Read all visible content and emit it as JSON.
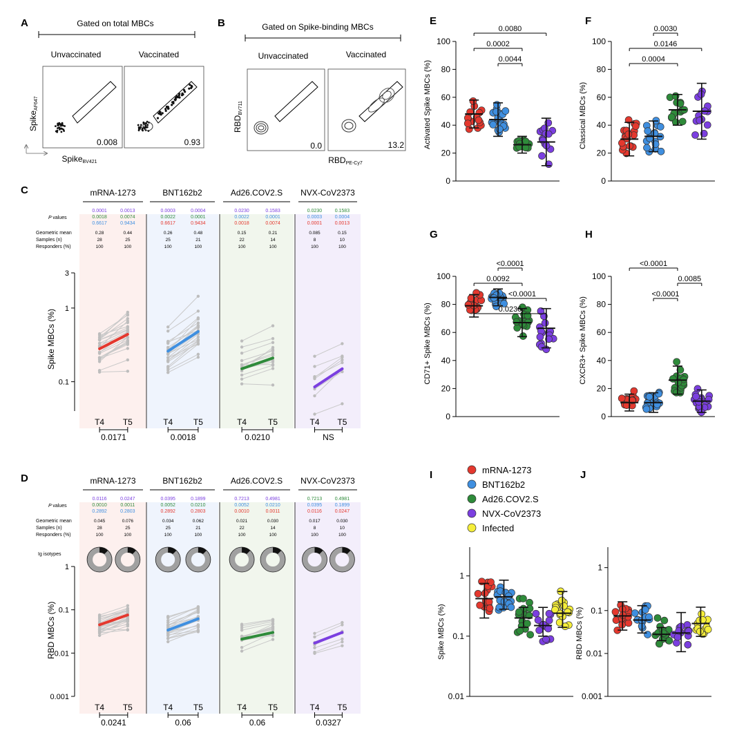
{
  "colors": {
    "mRNA": "#e4382e",
    "BNT": "#3f8fe0",
    "Ad26": "#2e8b3a",
    "NVX": "#7b3fe0",
    "Infected": "#f5ee3a",
    "grayPoint": "#bdbdbd",
    "grayLine": "#c9c9c9"
  },
  "panelA": {
    "letter": "A",
    "header": "Gated on total MBCs",
    "left_title": "Unvaccinated",
    "right_title": "Vaccinated",
    "left_value": "0.008",
    "right_value": "0.93",
    "ylabel_main": "Spike",
    "ylabel_sub": "AF647",
    "xlabel_main": "Spike",
    "xlabel_sub": "BV421"
  },
  "panelB": {
    "letter": "B",
    "header": "Gated on Spike-binding MBCs",
    "left_title": "Unvaccinated",
    "right_title": "Vaccinated",
    "left_value": "0.0",
    "right_value": "13.2",
    "ylabel_main": "RBD",
    "ylabel_sub": "BV711",
    "xlabel_main": "RBD",
    "xlabel_sub": "PE-Cy7"
  },
  "groups": [
    "mRNA-1273",
    "BNT162b2",
    "Ad26.COV2.S",
    "NVX-CoV2373"
  ],
  "legend": [
    "mRNA-1273",
    "BNT162b2",
    "Ad26.COV2.S",
    "NVX-CoV2373",
    "Infected"
  ],
  "panelC": {
    "letter": "C",
    "ylabel": "Spike MBCs (%)",
    "yticks": [
      "3",
      "1",
      "0.1"
    ],
    "row_labels": {
      "pvalues": "values",
      "pvalues_italic": "P",
      "gm": "Geometric mean",
      "n": "Samples (n)",
      "resp": "Responders (%)"
    },
    "xticks": [
      "T4",
      "T5"
    ],
    "groups": [
      {
        "pvals": [
          [
            "0.0001",
            "0.0013"
          ],
          [
            "0.0018",
            "0.0074"
          ],
          [
            "0.6617",
            "0.9434"
          ]
        ],
        "pcolors": [
          "NVX",
          "Ad26",
          "BNT"
        ],
        "gm": [
          "0.28",
          "0.44"
        ],
        "n": [
          "28",
          "25"
        ],
        "resp": [
          "100",
          "100"
        ],
        "bottom": "0.0171",
        "mean": [
          0.28,
          0.44
        ]
      },
      {
        "pvals": [
          [
            "0.0003",
            "0.0004"
          ],
          [
            "0.0022",
            "0.0001"
          ],
          [
            "0.6617",
            "0.9434"
          ]
        ],
        "pcolors": [
          "NVX",
          "Ad26",
          "mRNA"
        ],
        "gm": [
          "0.26",
          "0.48"
        ],
        "n": [
          "25",
          "21"
        ],
        "resp": [
          "100",
          "100"
        ],
        "bottom": "0.0018",
        "mean": [
          0.26,
          0.48
        ]
      },
      {
        "pvals": [
          [
            "0.0230",
            "0.1583"
          ],
          [
            "0.0022",
            "0.0001"
          ],
          [
            "0.0018",
            "0.0074"
          ]
        ],
        "pcolors": [
          "NVX",
          "BNT",
          "mRNA"
        ],
        "gm": [
          "0.15",
          "0.21"
        ],
        "n": [
          "22",
          "14"
        ],
        "resp": [
          "100",
          "100"
        ],
        "bottom": "0.0210",
        "mean": [
          0.15,
          0.21
        ]
      },
      {
        "pvals": [
          [
            "0.0230",
            "0.1583"
          ],
          [
            "0.0003",
            "0.0004"
          ],
          [
            "0.0001",
            "0.0013"
          ]
        ],
        "pcolors": [
          "Ad26",
          "BNT",
          "mRNA"
        ],
        "gm": [
          "0.085",
          "0.15"
        ],
        "n": [
          "8",
          "10"
        ],
        "resp": [
          "100",
          "100"
        ],
        "bottom": "NS",
        "mean": [
          0.085,
          0.15
        ]
      }
    ]
  },
  "panelD": {
    "letter": "D",
    "ylabel": "RBD MBCs (%)",
    "yticks": [
      "1",
      "0.1",
      "0.01",
      "0.001"
    ],
    "isotype_label": "Ig isotypes",
    "row_labels": {
      "pvalues": "values",
      "pvalues_italic": "P",
      "gm": "Geometric mean",
      "n": "Samples (n)",
      "resp": "Responders (%)"
    },
    "xticks": [
      "T4",
      "T5"
    ],
    "groups": [
      {
        "pvals": [
          [
            "0.0116",
            "0.0247"
          ],
          [
            "0.0010",
            "0.0011"
          ],
          [
            "0.2892",
            "0.2803"
          ]
        ],
        "pcolors": [
          "NVX",
          "Ad26",
          "BNT"
        ],
        "gm": [
          "0.045",
          "0.076"
        ],
        "n": [
          "28",
          "25"
        ],
        "resp": [
          "100",
          "100"
        ],
        "bottom": "0.0241",
        "mean": [
          0.045,
          0.076
        ]
      },
      {
        "pvals": [
          [
            "0.0395",
            "0.1899"
          ],
          [
            "0.0052",
            "0.0210"
          ],
          [
            "0.2892",
            "0.2803"
          ]
        ],
        "pcolors": [
          "NVX",
          "Ad26",
          "mRNA"
        ],
        "gm": [
          "0.034",
          "0.062"
        ],
        "n": [
          "25",
          "21"
        ],
        "resp": [
          "100",
          "100"
        ],
        "bottom": "0.06",
        "mean": [
          0.034,
          0.062
        ]
      },
      {
        "pvals": [
          [
            "0.7213",
            "0.4981"
          ],
          [
            "0.0052",
            "0.0210"
          ],
          [
            "0.0010",
            "0.0011"
          ]
        ],
        "pcolors": [
          "NVX",
          "BNT",
          "mRNA"
        ],
        "gm": [
          "0.021",
          "0.030"
        ],
        "n": [
          "22",
          "14"
        ],
        "resp": [
          "100",
          "100"
        ],
        "bottom": "0.06",
        "mean": [
          0.021,
          0.03
        ]
      },
      {
        "pvals": [
          [
            "0.7213",
            "0.4981"
          ],
          [
            "0.0395",
            "0.1899"
          ],
          [
            "0.0116",
            "0.0247"
          ]
        ],
        "pcolors": [
          "Ad26",
          "BNT",
          "mRNA"
        ],
        "gm": [
          "0.017",
          "0.030"
        ],
        "n": [
          "8",
          "10"
        ],
        "resp": [
          "100",
          "100"
        ],
        "bottom": "0.0327",
        "mean": [
          0.017,
          0.03
        ]
      }
    ]
  },
  "chart_data": [
    {
      "panel": "E",
      "type": "scatter",
      "ylabel": "Activated Spike MBCs (%)",
      "ylim": [
        0,
        100
      ],
      "yticks": [
        "0",
        "20",
        "40",
        "60",
        "80",
        "100"
      ],
      "groups": [
        {
          "name": "mRNA-1273",
          "mean": 48,
          "sd": 10
        },
        {
          "name": "BNT162b2",
          "mean": 44,
          "sd": 12
        },
        {
          "name": "Ad26.COV2.S",
          "mean": 26,
          "sd": 6
        },
        {
          "name": "NVX-CoV2373",
          "mean": 28,
          "sd": 17
        }
      ],
      "comparisons": [
        {
          "from": 0,
          "to": 3,
          "label": "0.0080"
        },
        {
          "from": 0,
          "to": 2,
          "label": "0.0002"
        },
        {
          "from": 1,
          "to": 2,
          "label": "0.0044"
        }
      ]
    },
    {
      "panel": "F",
      "type": "scatter",
      "ylabel": "Classical MBCs (%)",
      "ylim": [
        0,
        100
      ],
      "yticks": [
        "0",
        "20",
        "40",
        "60",
        "80",
        "100"
      ],
      "groups": [
        {
          "name": "mRNA-1273",
          "mean": 30,
          "sd": 12
        },
        {
          "name": "BNT162b2",
          "mean": 32,
          "sd": 11
        },
        {
          "name": "Ad26.COV2.S",
          "mean": 51,
          "sd": 11
        },
        {
          "name": "NVX-CoV2373",
          "mean": 50,
          "sd": 20
        }
      ],
      "comparisons": [
        {
          "from": 1,
          "to": 2,
          "label": "0.0030"
        },
        {
          "from": 0,
          "to": 3,
          "label": "0.0146"
        },
        {
          "from": 0,
          "to": 2,
          "label": "0.0004"
        }
      ]
    },
    {
      "panel": "G",
      "type": "scatter",
      "ylabel": "CD71+ Spike MBCs (%)",
      "ylim": [
        0,
        100
      ],
      "yticks": [
        "0",
        "20",
        "40",
        "60",
        "80",
        "100"
      ],
      "groups": [
        {
          "name": "mRNA-1273",
          "mean": 79,
          "sd": 8
        },
        {
          "name": "BNT162b2",
          "mean": 85,
          "sd": 6
        },
        {
          "name": "Ad26.COV2.S",
          "mean": 67,
          "sd": 10
        },
        {
          "name": "NVX-CoV2373",
          "mean": 63,
          "sd": 14
        }
      ],
      "comparisons": [
        {
          "from": 1,
          "to": 2,
          "label": "<0.0001"
        },
        {
          "from": 0,
          "to": 2,
          "label": "0.0092"
        },
        {
          "from": 1,
          "to": 3,
          "label": "<0.0001"
        },
        {
          "from": 0,
          "to": 3,
          "label": "0.0236"
        }
      ]
    },
    {
      "panel": "H",
      "type": "scatter",
      "ylabel": "CXCR3+ Spike MBCs (%)",
      "ylim": [
        0,
        100
      ],
      "yticks": [
        "0",
        "20",
        "40",
        "60",
        "80",
        "100"
      ],
      "groups": [
        {
          "name": "mRNA-1273",
          "mean": 10,
          "sd": 6
        },
        {
          "name": "BNT162b2",
          "mean": 10,
          "sd": 7
        },
        {
          "name": "Ad26.COV2.S",
          "mean": 26,
          "sd": 10
        },
        {
          "name": "NVX-CoV2373",
          "mean": 11,
          "sd": 8
        }
      ],
      "comparisons": [
        {
          "from": 0,
          "to": 2,
          "label": "<0.0001"
        },
        {
          "from": 2,
          "to": 3,
          "label": "0.0085"
        },
        {
          "from": 1,
          "to": 2,
          "label": "<0.0001"
        }
      ]
    },
    {
      "panel": "I",
      "type": "scatter",
      "ylabel": "Spike MBCs (%)",
      "yscale": "log",
      "ylim": [
        0.01,
        3
      ],
      "yticks": [
        "1",
        "0.1",
        "0.01"
      ],
      "groups": [
        {
          "name": "mRNA-1273",
          "mean": 0.42,
          "lo": 0.2,
          "hi": 0.75
        },
        {
          "name": "BNT162b2",
          "mean": 0.45,
          "lo": 0.28,
          "hi": 0.85
        },
        {
          "name": "Ad26.COV2.S",
          "mean": 0.2,
          "lo": 0.14,
          "hi": 0.3
        },
        {
          "name": "NVX-CoV2373",
          "mean": 0.15,
          "lo": 0.1,
          "hi": 0.3
        },
        {
          "name": "Infected",
          "mean": 0.24,
          "lo": 0.14,
          "hi": 0.55
        }
      ]
    },
    {
      "panel": "J",
      "type": "scatter",
      "ylabel": "RBD MBCs (%)",
      "yscale": "log",
      "ylim": [
        0.001,
        3
      ],
      "yticks": [
        "1",
        "0.1",
        "0.01",
        "0.001"
      ],
      "groups": [
        {
          "name": "mRNA-1273",
          "mean": 0.075,
          "lo": 0.035,
          "hi": 0.16
        },
        {
          "name": "BNT162b2",
          "mean": 0.06,
          "lo": 0.03,
          "hi": 0.13
        },
        {
          "name": "Ad26.COV2.S",
          "mean": 0.028,
          "lo": 0.02,
          "hi": 0.04
        },
        {
          "name": "NVX-CoV2373",
          "mean": 0.03,
          "lo": 0.011,
          "hi": 0.09
        },
        {
          "name": "Infected",
          "mean": 0.05,
          "lo": 0.025,
          "hi": 0.12
        }
      ]
    }
  ]
}
